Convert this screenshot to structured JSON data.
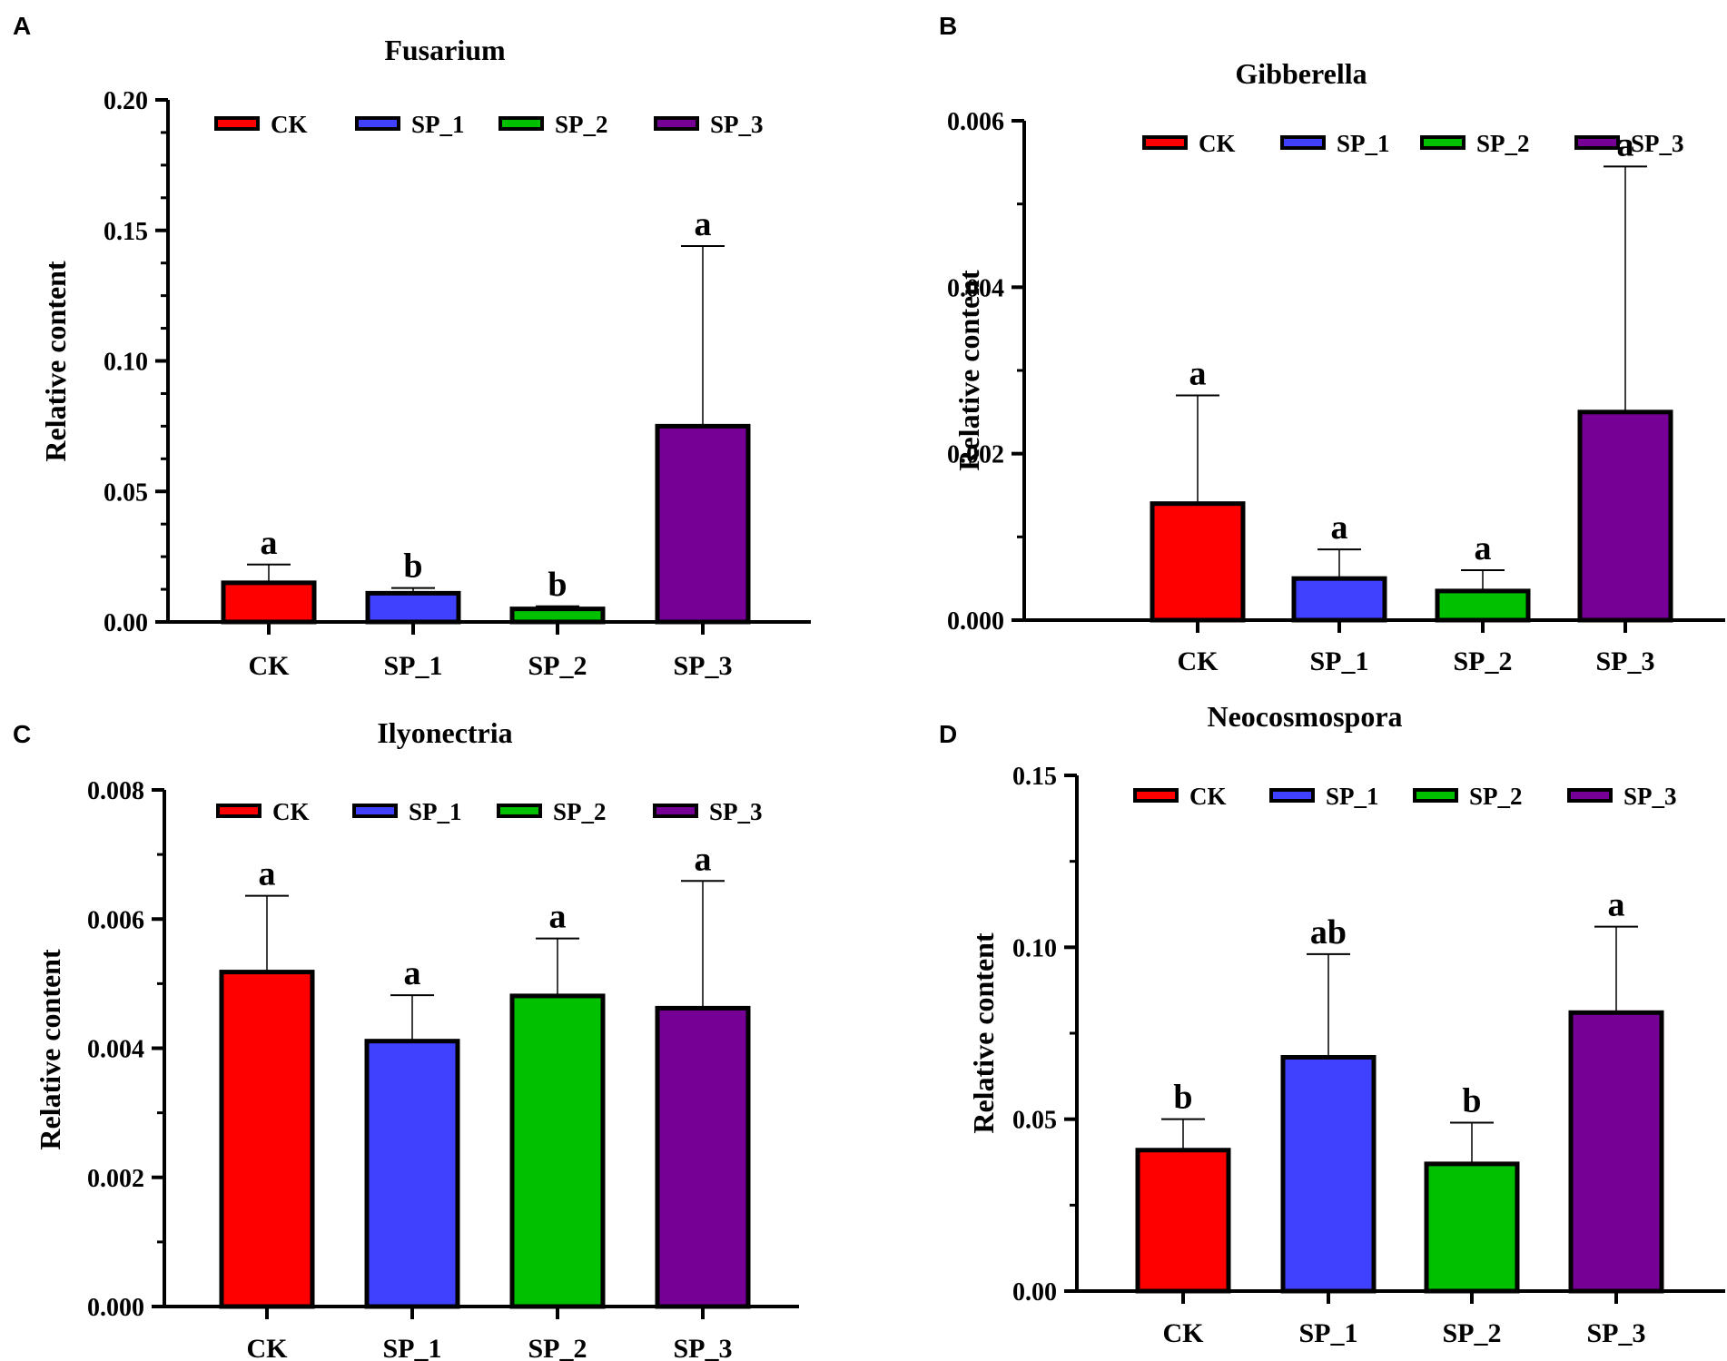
{
  "chart_data": [
    {
      "panel": "A",
      "type": "bar",
      "title": "Fusarium",
      "xlabel": "",
      "ylabel": "Relative content",
      "categories": [
        "CK",
        "SP_1",
        "SP_2",
        "SP_3"
      ],
      "values": [
        0.015,
        0.011,
        0.005,
        0.075
      ],
      "errors": [
        0.007,
        0.002,
        0.001,
        0.069
      ],
      "significance": [
        "a",
        "b",
        "b",
        "a"
      ],
      "colors": [
        "#ff0000",
        "#4040ff",
        "#00c000",
        "#760096"
      ],
      "ylim": [
        0,
        0.2
      ],
      "yticks": [
        "0.00",
        "0.05",
        "0.10",
        "0.15",
        "0.20"
      ],
      "minor_per_major": 4,
      "legend": [
        "CK",
        "SP_1",
        "SP_2",
        "SP_3"
      ],
      "legend_position": "top"
    },
    {
      "panel": "B",
      "type": "bar",
      "title": "Gibberella",
      "xlabel": "",
      "ylabel": "Relative content",
      "categories": [
        "CK",
        "SP_1",
        "SP_2",
        "SP_3"
      ],
      "values": [
        0.0014,
        0.0005,
        0.00035,
        0.0025
      ],
      "errors": [
        0.0013,
        0.00035,
        0.00025,
        0.00295
      ],
      "significance": [
        "a",
        "a",
        "a",
        "a"
      ],
      "colors": [
        "#ff0000",
        "#4040ff",
        "#00c000",
        "#760096"
      ],
      "ylim": [
        0,
        0.006
      ],
      "yticks": [
        "0.000",
        "0.002",
        "0.004",
        "0.006"
      ],
      "minor_per_major": 2,
      "legend": [
        "CK",
        "SP_1",
        "SP_2",
        "SP_3"
      ],
      "legend_position": "top"
    },
    {
      "panel": "C",
      "type": "bar",
      "title": "Ilyonectria",
      "xlabel": "",
      "ylabel": "Relative content",
      "categories": [
        "CK",
        "SP_1",
        "SP_2",
        "SP_3"
      ],
      "values": [
        0.00518,
        0.00411,
        0.00481,
        0.00462
      ],
      "errors": [
        0.00118,
        0.00071,
        0.00089,
        0.00197
      ],
      "significance": [
        "a",
        "a",
        "a",
        "a"
      ],
      "colors": [
        "#ff0000",
        "#4040ff",
        "#00c000",
        "#760096"
      ],
      "ylim": [
        0,
        0.008
      ],
      "yticks": [
        "0.000",
        "0.002",
        "0.004",
        "0.006",
        "0.008"
      ],
      "minor_per_major": 2,
      "legend": [
        "CK",
        "SP_1",
        "SP_2",
        "SP_3"
      ],
      "legend_position": "top"
    },
    {
      "panel": "D",
      "type": "bar",
      "title": "Neocosmospora",
      "xlabel": "",
      "ylabel": "Relative content",
      "categories": [
        "CK",
        "SP_1",
        "SP_2",
        "SP_3"
      ],
      "values": [
        0.041,
        0.068,
        0.037,
        0.081
      ],
      "errors": [
        0.009,
        0.03,
        0.012,
        0.025
      ],
      "significance": [
        "b",
        "ab",
        "b",
        "a"
      ],
      "colors": [
        "#ff0000",
        "#4040ff",
        "#00c000",
        "#760096"
      ],
      "ylim": [
        0,
        0.15
      ],
      "yticks": [
        "0.00",
        "0.05",
        "0.10",
        "0.15"
      ],
      "minor_per_major": 2,
      "legend": [
        "CK",
        "SP_1",
        "SP_2",
        "SP_3"
      ],
      "legend_position": "top"
    }
  ]
}
